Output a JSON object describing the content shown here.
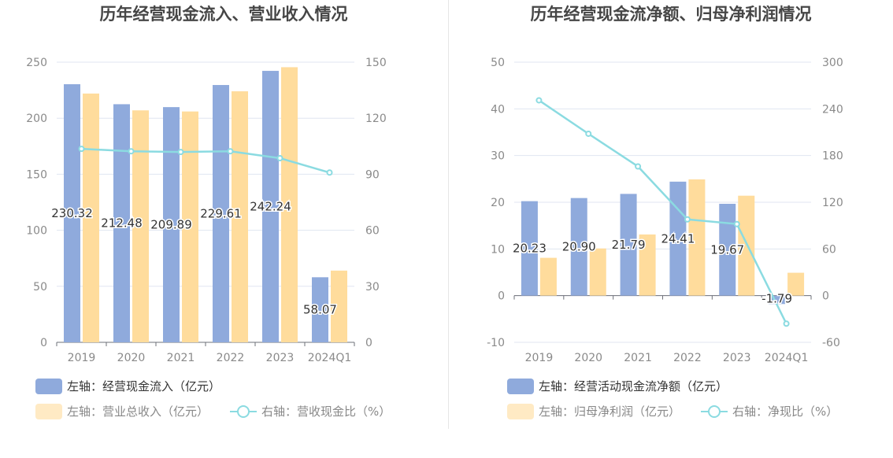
{
  "chart_data": [
    {
      "type": "bar",
      "title": "历年经营现金流入、营业收入情况",
      "categories": [
        "2019",
        "2020",
        "2021",
        "2022",
        "2023",
        "2024Q1"
      ],
      "y_left_lim": [
        0,
        250
      ],
      "y_left_ticks": [
        "0",
        "50",
        "100",
        "150",
        "200",
        "250"
      ],
      "y_right_lim": [
        0,
        150
      ],
      "y_right_ticks": [
        "0",
        "30",
        "60",
        "90",
        "120",
        "150"
      ],
      "series": [
        {
          "name": "左轴：经营现金流入（亿元）",
          "axis": "left",
          "kind": "bar",
          "color": "#8faadc",
          "values": [
            230.32,
            212.48,
            209.89,
            229.61,
            242.24,
            58.07
          ],
          "labels": [
            "230.32",
            "212.48",
            "209.89",
            "229.61",
            "242.24",
            "58.07"
          ]
        },
        {
          "name": "左轴：营业总收入（亿元）",
          "axis": "left",
          "kind": "bar",
          "color": "#ffdc9c",
          "values": [
            222,
            207,
            206,
            224,
            245.5,
            64
          ]
        },
        {
          "name": "右轴：营收现金比（%）",
          "axis": "right",
          "kind": "line",
          "color": "#8bdbe1",
          "values": [
            103.6,
            102.3,
            101.9,
            102.3,
            98.6,
            90.9
          ]
        }
      ],
      "grid": true
    },
    {
      "type": "bar",
      "title": "历年经营现金流净额、归母净利润情况",
      "categories": [
        "2019",
        "2020",
        "2021",
        "2022",
        "2023",
        "2024Q1"
      ],
      "y_left_lim": [
        -10,
        50
      ],
      "y_left_ticks": [
        "-10",
        "0",
        "10",
        "20",
        "30",
        "40",
        "50"
      ],
      "y_right_lim": [
        -60,
        300
      ],
      "y_right_ticks": [
        "-60",
        "0",
        "60",
        "120",
        "180",
        "240",
        "300"
      ],
      "series": [
        {
          "name": "左轴：经营活动现金流净额（亿元）",
          "axis": "left",
          "kind": "bar",
          "color": "#8faadc",
          "values": [
            20.23,
            20.9,
            21.79,
            24.41,
            19.67,
            -1.79
          ],
          "labels": [
            "20.23",
            "20.90",
            "21.79",
            "24.41",
            "19.67",
            "-1.79"
          ]
        },
        {
          "name": "左轴：归母净利润（亿元）",
          "axis": "left",
          "kind": "bar",
          "color": "#ffdc9c",
          "values": [
            8.1,
            10.1,
            13.1,
            24.9,
            21.4,
            4.9
          ]
        },
        {
          "name": "右轴：净现比（%）",
          "axis": "right",
          "kind": "line",
          "color": "#8bdbe1",
          "values": [
            251,
            208,
            166,
            98,
            92,
            -36
          ]
        }
      ],
      "grid": true
    }
  ]
}
